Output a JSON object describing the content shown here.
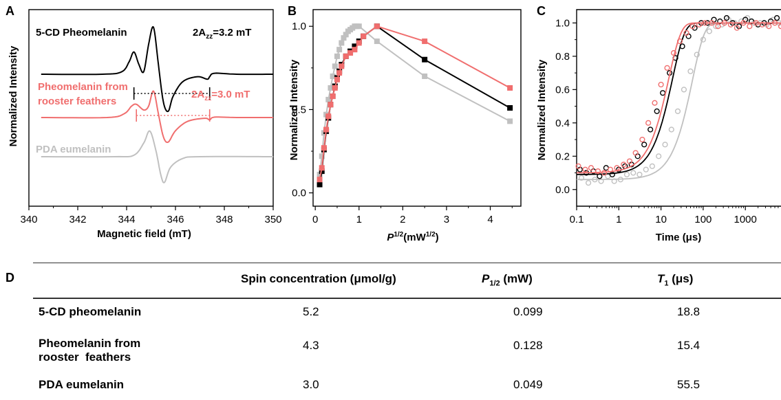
{
  "panels": {
    "a": {
      "letter": "A"
    },
    "b": {
      "letter": "B"
    },
    "c": {
      "letter": "C"
    },
    "d": {
      "letter": "D"
    }
  },
  "chart_data": [
    {
      "type": "line",
      "panel": "A",
      "xlabel": "Magnetic field (mT)",
      "ylabel": "Normalized Intensity",
      "xlim": [
        340,
        350
      ],
      "xticks": [
        "340",
        "342",
        "344",
        "346",
        "348",
        "350"
      ],
      "annotations": [
        {
          "text": "5-CD Pheomelanin",
          "color": "#000000"
        },
        {
          "text_parts": [
            "2A",
            "zz",
            "=3.2 mT"
          ],
          "color": "#000000",
          "marker_span": [
            344.3,
            347.4
          ]
        },
        {
          "text_lines": [
            "Pheomelanin from",
            "rooster feathers"
          ],
          "color": "#f06e6e"
        },
        {
          "text_parts": [
            "2A",
            "zz",
            "=3.0 mT"
          ],
          "color": "#f06e6e",
          "marker_span": [
            344.4,
            347.4
          ]
        },
        {
          "text": "PDA eumelanin",
          "color": "#c0c0c0"
        }
      ],
      "series": [
        {
          "name": "5-CD Pheomelanin",
          "color": "#000000",
          "x": [
            340.5,
            343.0,
            343.8,
            344.1,
            344.3,
            344.5,
            344.7,
            344.9,
            345.1,
            345.3,
            345.5,
            345.7,
            345.9,
            346.3,
            346.9,
            347.3,
            347.4,
            347.6,
            348.5,
            350.0
          ],
          "y": [
            0,
            0,
            0.05,
            0.25,
            0.45,
            0.2,
            0.05,
            0.6,
            0.95,
            0.2,
            -0.55,
            -0.75,
            -0.45,
            -0.15,
            -0.05,
            -0.1,
            -0.05,
            0.02,
            0,
            0
          ]
        },
        {
          "name": "Pheomelanin from rooster feathers",
          "color": "#f06e6e",
          "x": [
            340.5,
            343.2,
            343.9,
            344.2,
            344.4,
            344.7,
            344.9,
            345.1,
            345.3,
            345.5,
            345.7,
            346.0,
            346.5,
            347.2,
            347.4,
            347.6,
            348.5,
            350.0
          ],
          "y": [
            0,
            0,
            0.1,
            0.3,
            0.35,
            0.2,
            0.3,
            0.7,
            0.1,
            -0.5,
            -0.65,
            -0.35,
            -0.1,
            -0.02,
            -0.06,
            0.01,
            0,
            0
          ]
        },
        {
          "name": "PDA eumelanin",
          "color": "#c0c0c0",
          "x": [
            340.5,
            343.5,
            344.3,
            344.7,
            344.95,
            345.2,
            345.4,
            345.55,
            345.8,
            346.3,
            347.0,
            350.0
          ],
          "y": [
            0,
            0,
            0.05,
            0.45,
            0.85,
            0.2,
            -0.6,
            -0.85,
            -0.35,
            -0.06,
            0,
            0
          ]
        }
      ]
    },
    {
      "type": "line",
      "panel": "B",
      "xlabel_parts": [
        "P",
        "1/2",
        "(mW",
        "1/2",
        ")"
      ],
      "ylabel": "Normalized Intensity",
      "xlim": [
        -0.05,
        4.7
      ],
      "ylim": [
        -0.08,
        1.1
      ],
      "xticks": [
        0,
        1,
        2,
        3,
        4
      ],
      "yticks": [
        0.0,
        0.5,
        1.0
      ],
      "xtick_labels": [
        "0",
        "1",
        "2",
        "3",
        "4"
      ],
      "ytick_labels": [
        "0.0",
        "0.5",
        "1.0"
      ],
      "series": [
        {
          "name": "5-CD Pheomelanin",
          "color": "#000000",
          "x": [
            0.1,
            0.15,
            0.2,
            0.25,
            0.3,
            0.35,
            0.4,
            0.45,
            0.5,
            0.55,
            0.6,
            0.7,
            0.8,
            0.9,
            1.0,
            1.1,
            1.41,
            2.5,
            4.45
          ],
          "y": [
            0.05,
            0.13,
            0.26,
            0.37,
            0.45,
            0.53,
            0.58,
            0.64,
            0.69,
            0.73,
            0.77,
            0.82,
            0.85,
            0.88,
            0.91,
            0.94,
            1.0,
            0.8,
            0.51
          ]
        },
        {
          "name": "Pheomelanin from rooster feathers",
          "color": "#f06e6e",
          "x": [
            0.1,
            0.15,
            0.2,
            0.25,
            0.3,
            0.35,
            0.4,
            0.45,
            0.5,
            0.55,
            0.6,
            0.7,
            0.8,
            0.9,
            1.0,
            1.1,
            1.41,
            2.5,
            4.45
          ],
          "y": [
            0.08,
            0.15,
            0.27,
            0.38,
            0.46,
            0.53,
            0.58,
            0.63,
            0.68,
            0.72,
            0.76,
            0.82,
            0.84,
            0.86,
            0.9,
            0.94,
            1.0,
            0.91,
            0.63
          ]
        },
        {
          "name": "PDA eumelanin",
          "color": "#c0c0c0",
          "x": [
            0.1,
            0.15,
            0.2,
            0.25,
            0.3,
            0.35,
            0.4,
            0.45,
            0.5,
            0.55,
            0.6,
            0.65,
            0.7,
            0.75,
            0.8,
            0.85,
            0.9,
            0.95,
            1.0,
            1.41,
            2.5,
            4.45
          ],
          "y": [
            0.11,
            0.22,
            0.36,
            0.47,
            0.56,
            0.63,
            0.7,
            0.76,
            0.82,
            0.86,
            0.9,
            0.93,
            0.95,
            0.97,
            0.98,
            0.99,
            1.0,
            1.0,
            1.0,
            0.91,
            0.7,
            0.43
          ]
        }
      ]
    },
    {
      "type": "scatter",
      "panel": "C",
      "xlabel": "Time (μs)",
      "ylabel": "Normalized Intensity",
      "xscale": "log",
      "xlim": [
        0.1,
        7000
      ],
      "ylim": [
        -0.1,
        1.08
      ],
      "xticks": [
        0.1,
        1,
        10,
        100,
        1000
      ],
      "yticks": [
        0.0,
        0.2,
        0.4,
        0.6,
        0.8,
        1.0
      ],
      "xtick_labels": [
        "0.1",
        "1",
        "10",
        "100",
        "1000"
      ],
      "ytick_labels": [
        "0.0",
        "0.2",
        "0.4",
        "0.6",
        "0.8",
        "1.0"
      ],
      "series": [
        {
          "name": "5-CD pheomelanin",
          "color": "#000000",
          "T1": 18.8,
          "baseline": 0.09,
          "x": [
            0.12,
            0.17,
            0.25,
            0.35,
            0.5,
            0.7,
            1.0,
            1.4,
            2.0,
            2.8,
            4.0,
            5.6,
            8.0,
            11,
            16,
            22,
            32,
            45,
            63,
            90,
            126,
            180,
            250,
            360,
            500,
            710,
            1000,
            1400,
            2000,
            2800,
            4000,
            5600
          ],
          "y": [
            0.12,
            0.1,
            0.11,
            0.08,
            0.13,
            0.09,
            0.12,
            0.14,
            0.15,
            0.2,
            0.27,
            0.36,
            0.47,
            0.58,
            0.7,
            0.79,
            0.86,
            0.92,
            0.97,
            1.0,
            1.0,
            1.02,
            1.01,
            1.03,
            1.0,
            0.98,
            1.02,
            1.01,
            0.99,
            1.0,
            1.01,
            1.03
          ]
        },
        {
          "name": "Pheomelanin from rooster feathers",
          "color": "#f06e6e",
          "T1": 15.4,
          "baseline": 0.1,
          "x": [
            0.11,
            0.16,
            0.22,
            0.32,
            0.45,
            0.63,
            0.9,
            1.3,
            1.8,
            2.5,
            3.6,
            5.0,
            7.1,
            10,
            14,
            20,
            28,
            40,
            56,
            80,
            110,
            160,
            225,
            320,
            450,
            630,
            900,
            1260,
            1800,
            2500,
            3600,
            5000,
            7000
          ],
          "y": [
            0.14,
            0.12,
            0.13,
            0.11,
            0.1,
            0.12,
            0.13,
            0.15,
            0.17,
            0.22,
            0.3,
            0.4,
            0.52,
            0.63,
            0.73,
            0.82,
            0.89,
            0.94,
            0.98,
            0.99,
            1.0,
            1.0,
            0.98,
            1.0,
            0.99,
            0.97,
            1.0,
            0.98,
            1.0,
            0.99,
            0.98,
            1.0,
            0.98
          ]
        },
        {
          "name": "PDA eumelanin",
          "color": "#c0c0c0",
          "T1": 55.5,
          "baseline": 0.06,
          "x": [
            0.13,
            0.19,
            0.27,
            0.38,
            0.55,
            0.78,
            1.1,
            1.55,
            2.2,
            3.1,
            4.4,
            6.2,
            8.8,
            12.5,
            17.7,
            25,
            35,
            50,
            71,
            100,
            140,
            200,
            280,
            400,
            560,
            800,
            1120,
            1600,
            2240,
            3200,
            4500,
            6300
          ],
          "y": [
            0.07,
            0.04,
            0.06,
            0.05,
            0.08,
            0.05,
            0.06,
            0.09,
            0.1,
            0.09,
            0.12,
            0.14,
            0.2,
            0.27,
            0.36,
            0.47,
            0.6,
            0.71,
            0.81,
            0.9,
            0.95,
            0.98,
            0.99,
            1.02,
            1.0,
            1.01,
            1.03,
            1.0,
            1.0,
            0.99,
            1.02,
            1.0
          ]
        }
      ]
    },
    {
      "type": "table",
      "panel": "D",
      "columns": {
        "spin": "Spin concentration (μmol/g)",
        "p_main": "P",
        "p_sub": "1/2",
        "p_unit": " (mW)",
        "t_main": "T",
        "t_sub": "1",
        "t_unit": " (μs)"
      },
      "rows": [
        {
          "name": "5-CD pheomelanin",
          "spin": "5.2",
          "p": "0.099",
          "t": "18.8"
        },
        {
          "name_line1": "Pheomelanin from",
          "name_line2": "rooster  feathers",
          "spin": "4.3",
          "p": "0.128",
          "t": "15.4"
        },
        {
          "name": "PDA eumelanin",
          "spin": "3.0",
          "p": "0.049",
          "t": "55.5"
        }
      ]
    }
  ]
}
